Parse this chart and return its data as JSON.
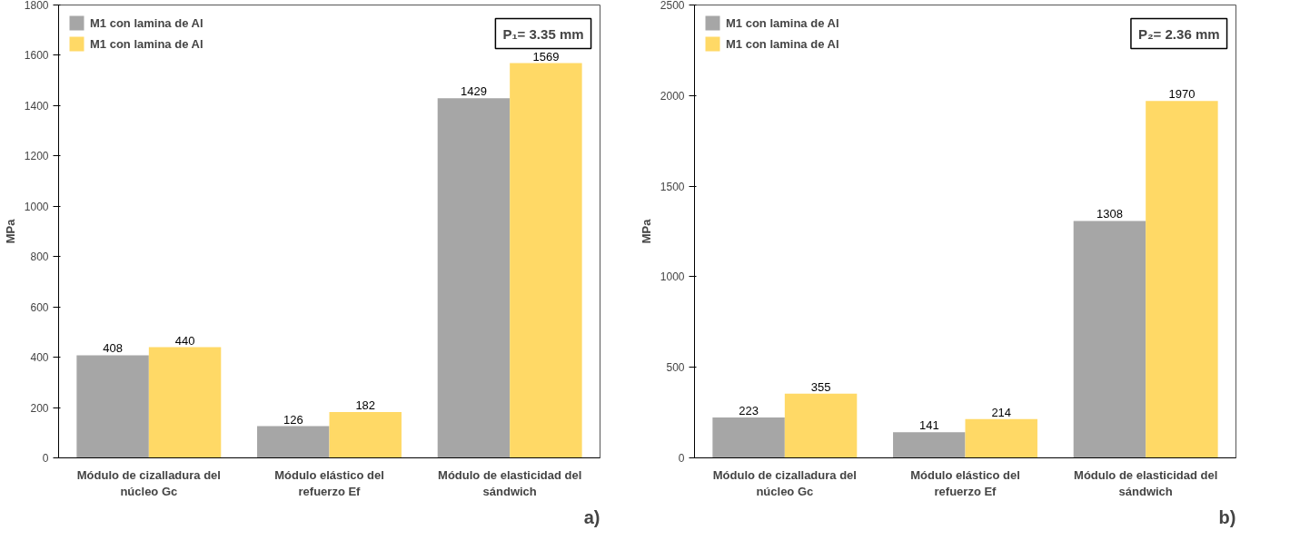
{
  "chart_data": [
    {
      "type": "bar",
      "categories": [
        "Módulo de cizalladura del núcleo Gc",
        "Módulo elástico del refuerzo Ef",
        "Módulo de elasticidad del sándwich"
      ],
      "ylabel": "MPa",
      "ylim": [
        0,
        1800
      ],
      "yticks": [
        0,
        200,
        400,
        600,
        800,
        1000,
        1200,
        1400,
        1600,
        1800
      ],
      "legend": "top left",
      "grid": false,
      "data_labels": true,
      "annotations": [
        "P₁= 3.35 mm",
        "a)"
      ],
      "series": [
        {
          "name": "M1 con lamina de Al",
          "color": "#a6a6a6",
          "values": [
            408,
            126,
            1429
          ]
        },
        {
          "name": "M1 con lamina de Al",
          "color": "#ffd966",
          "values": [
            440,
            182,
            1569
          ]
        }
      ]
    },
    {
      "type": "bar",
      "categories": [
        "Módulo de cizalladura del núcleo Gc",
        "Módulo elástico del refuerzo Ef",
        "Módulo de elasticidad del sándwich"
      ],
      "ylabel": "MPa",
      "ylim": [
        0,
        2500
      ],
      "yticks": [
        0,
        500,
        1000,
        1500,
        2000,
        2500
      ],
      "legend": "top left",
      "grid": false,
      "data_labels": true,
      "annotations": [
        "P₂= 2.36 mm",
        "b)"
      ],
      "series": [
        {
          "name": "M1 con lamina de Al",
          "color": "#a6a6a6",
          "values": [
            223,
            141,
            1308
          ]
        },
        {
          "name": "M1 con lamina de Al",
          "color": "#ffd966",
          "values": [
            355,
            214,
            1970
          ]
        }
      ]
    }
  ]
}
